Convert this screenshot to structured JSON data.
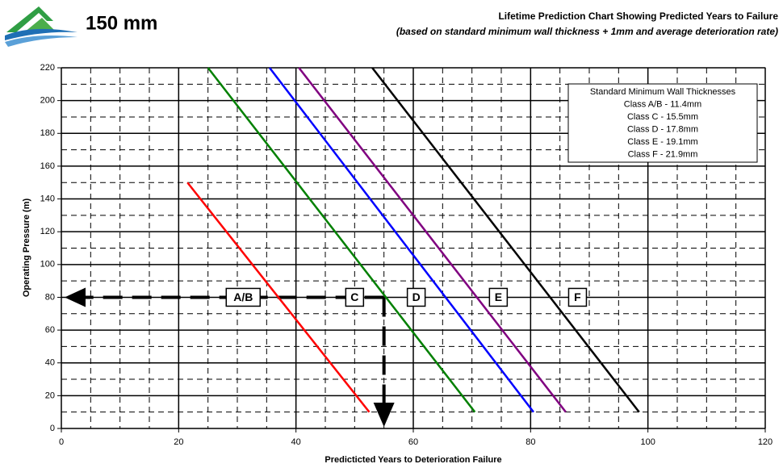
{
  "brand": {
    "label": "150 mm"
  },
  "chart_data": {
    "type": "line",
    "title": "Lifetime Prediction Chart Showing Predicted Years to Failure",
    "subtitle": "(based on standard minimum wall thickness + 1mm and average deterioration rate)",
    "x_label": "Predicticted Years to Deterioration Failure",
    "y_label": "Operating Pressure (m)",
    "xlim": [
      0,
      120
    ],
    "xticks": [
      0,
      20,
      40,
      60,
      80,
      100,
      120
    ],
    "ylim": [
      0,
      220
    ],
    "yticks": [
      0,
      20,
      40,
      60,
      80,
      100,
      120,
      140,
      160,
      180,
      200,
      220
    ],
    "grid": true,
    "minor_grid": true,
    "series": [
      {
        "name": "A/B",
        "color": "#ff0000",
        "x": [
          21.5,
          52.5
        ],
        "values": [
          150,
          10
        ],
        "label_x": 31
      },
      {
        "name": "C",
        "color": "#008000",
        "x": [
          25,
          70.5
        ],
        "values": [
          220,
          10
        ],
        "label_x": 50
      },
      {
        "name": "D",
        "color": "#0000ff",
        "x": [
          35.5,
          80.5
        ],
        "values": [
          220,
          10
        ],
        "label_x": 60.5
      },
      {
        "name": "E",
        "color": "#800080",
        "x": [
          40.5,
          86
        ],
        "values": [
          220,
          10
        ],
        "label_x": 74.5
      },
      {
        "name": "F",
        "color": "#000000",
        "x": [
          53,
          98.5
        ],
        "values": [
          220,
          10
        ],
        "label_x": 88
      }
    ],
    "marker_point": {
      "x": 55,
      "y": 80
    },
    "notes": {
      "title": "Standard Minimum Wall Thicknesses",
      "lines": [
        "Class A/B - 11.4mm",
        "Class C - 15.5mm",
        "Class D - 17.8mm",
        "Class E - 19.1mm",
        "Class F - 21.9mm"
      ]
    }
  }
}
